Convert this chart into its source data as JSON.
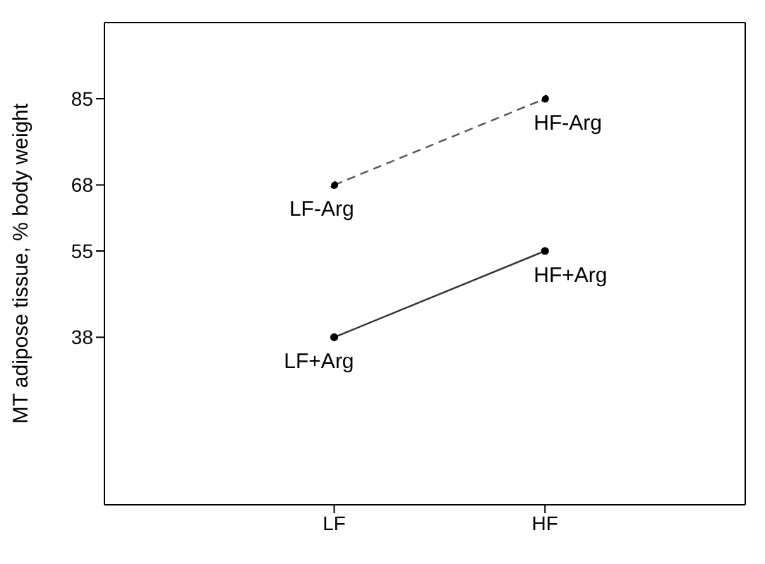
{
  "chart_data": {
    "type": "line",
    "ylabel": "MT adipose tissue, % body weight",
    "categories": [
      "LF",
      "HF"
    ],
    "series": [
      {
        "color": "#555555",
        "line_style": "dashed",
        "values": [
          68,
          85
        ]
      },
      {
        "color": "#333333",
        "line_style": "solid",
        "values": [
          38,
          55
        ]
      }
    ],
    "ylim": [
      5,
      100
    ],
    "yticks": [
      38,
      55,
      68,
      85
    ],
    "marker": "circle",
    "grid": false,
    "legend": false,
    "annotations": [
      {
        "text": "LF-Arg",
        "x": "LF",
        "y": 68
      },
      {
        "text": "HF-Arg",
        "x": "HF",
        "y": 85
      },
      {
        "text": "LF+Arg",
        "x": "LF",
        "y": 38
      },
      {
        "text": "HF+Arg",
        "x": "HF",
        "y": 55
      }
    ]
  }
}
